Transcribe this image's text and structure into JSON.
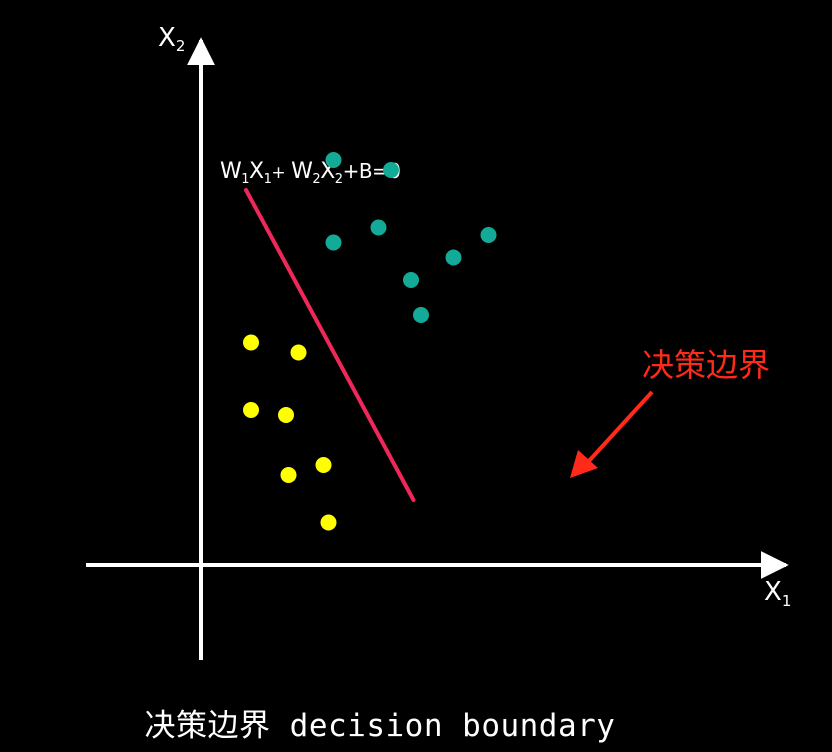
{
  "axes": {
    "x_label": "X",
    "x_sub": "1",
    "y_label": "X",
    "y_sub": "2"
  },
  "equation": {
    "w1": "W",
    "w1_sub": "1",
    "x1": "X",
    "x1_sub": "1",
    "plus1": "+",
    "w2": "W",
    "w2_sub": "2",
    "x2": "X",
    "x2_sub": "2",
    "rest": "+B=0"
  },
  "annotation": {
    "label": "决策边界",
    "color": "#ff2a1a"
  },
  "caption": "决策边界 decision boundary",
  "colors": {
    "background": "#000000",
    "axis": "#ffffff",
    "boundary_line": "#f0285a",
    "class_a": "#ffff00",
    "class_b": "#13aa98"
  },
  "classes": [
    {
      "name": "",
      "color": "#ffff00",
      "points": [
        [
          1.0,
          4.45
        ],
        [
          1.95,
          4.25
        ],
        [
          1.0,
          3.1
        ],
        [
          1.7,
          3.0
        ],
        [
          1.75,
          1.8
        ],
        [
          2.45,
          2.0
        ],
        [
          2.55,
          0.85
        ]
      ]
    },
    {
      "name": "",
      "color": "#13aa98",
      "points": [
        [
          2.65,
          8.1
        ],
        [
          3.8,
          7.9
        ],
        [
          3.55,
          6.75
        ],
        [
          2.65,
          6.45
        ],
        [
          5.05,
          6.15
        ],
        [
          4.2,
          5.7
        ],
        [
          5.75,
          6.6
        ],
        [
          4.4,
          5.0
        ]
      ]
    }
  ],
  "boundary": {
    "from": [
      0.9,
      7.5
    ],
    "to": [
      4.25,
      1.3
    ]
  }
}
